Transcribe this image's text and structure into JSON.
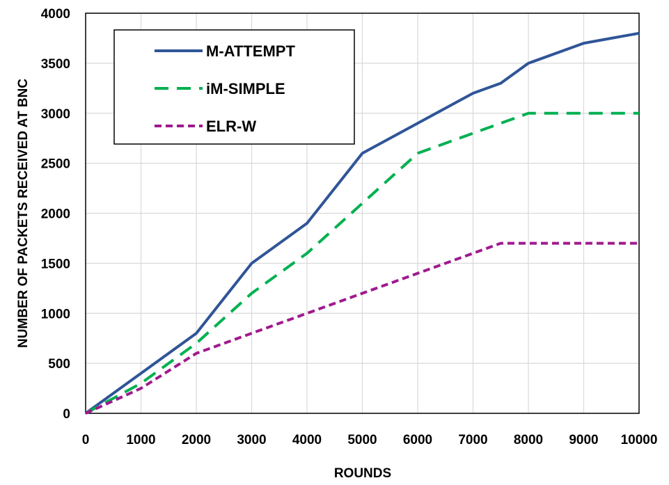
{
  "chart_data": {
    "type": "line",
    "title": "",
    "xlabel": "ROUNDS",
    "ylabel": "NUMBER OF PACKETS RECEIVED AT BNC",
    "xlim": [
      0,
      10000
    ],
    "ylim": [
      0,
      4000
    ],
    "xticks": [
      0,
      1000,
      2000,
      3000,
      4000,
      5000,
      6000,
      7000,
      8000,
      9000,
      10000
    ],
    "yticks": [
      0,
      500,
      1000,
      1500,
      2000,
      2500,
      3000,
      3500,
      4000
    ],
    "grid": true,
    "legend_position": "top-left",
    "series": [
      {
        "name": "M-ATTEMPT",
        "color": "#2F5597",
        "style": "solid",
        "points": [
          [
            0,
            0
          ],
          [
            1000,
            400
          ],
          [
            2000,
            800
          ],
          [
            3000,
            1500
          ],
          [
            4000,
            1900
          ],
          [
            5000,
            2600
          ],
          [
            6000,
            2900
          ],
          [
            7000,
            3200
          ],
          [
            7500,
            3300
          ],
          [
            8000,
            3500
          ],
          [
            9000,
            3700
          ],
          [
            10000,
            3800
          ]
        ]
      },
      {
        "name": "iM-SIMPLE",
        "color": "#00B050",
        "style": "dash",
        "points": [
          [
            0,
            0
          ],
          [
            1000,
            300
          ],
          [
            2000,
            700
          ],
          [
            3000,
            1200
          ],
          [
            4000,
            1600
          ],
          [
            5000,
            2100
          ],
          [
            6000,
            2600
          ],
          [
            7000,
            2800
          ],
          [
            8000,
            3000
          ],
          [
            9000,
            3000
          ],
          [
            10000,
            3000
          ]
        ]
      },
      {
        "name": "ELR-W",
        "color": "#A0198E",
        "style": "short-dash",
        "points": [
          [
            0,
            0
          ],
          [
            1000,
            250
          ],
          [
            2000,
            600
          ],
          [
            3000,
            800
          ],
          [
            4000,
            1000
          ],
          [
            5000,
            1200
          ],
          [
            6000,
            1400
          ],
          [
            7000,
            1600
          ],
          [
            7500,
            1700
          ],
          [
            8000,
            1700
          ],
          [
            9000,
            1700
          ],
          [
            10000,
            1700
          ]
        ]
      }
    ]
  }
}
